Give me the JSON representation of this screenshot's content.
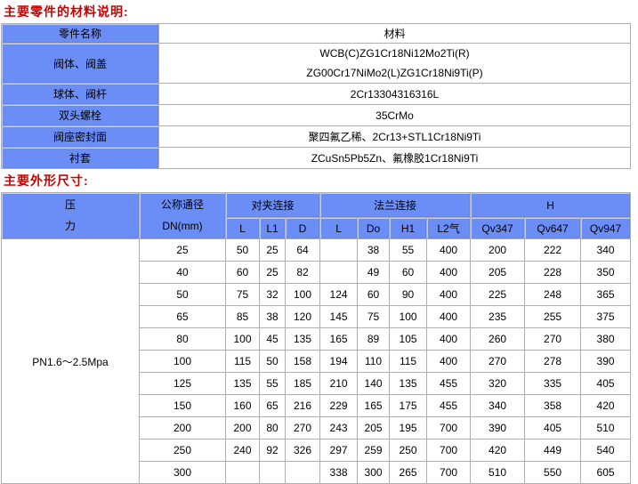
{
  "colors": {
    "header_blue": "#6b8df6",
    "title_red": "#cc0000",
    "border_gray": "#aeaeae"
  },
  "sections": {
    "materials_title": "主要零件的材料说明:",
    "dimensions_title": "主要外形尺寸:"
  },
  "materials_table": {
    "headers": {
      "part": "零件名称",
      "material": "材料"
    },
    "rows": [
      {
        "part": "阀体、阀盖",
        "material_lines": [
          "WCB(C)ZG1Cr18Ni12Mo2Ti(R)",
          "ZG00Cr17NiMo2(L)ZG1Cr18Ni9Ti(P)"
        ]
      },
      {
        "part": "球体、阀杆",
        "material_lines": [
          "2Cr13304316316L"
        ]
      },
      {
        "part": "双头螺栓",
        "material_lines": [
          "35CrMo"
        ]
      },
      {
        "part": "阀座密封面",
        "material_lines": [
          "聚四氟乙稀、2Cr13+STL1Cr18Ni9Ti"
        ]
      },
      {
        "part": "衬套",
        "material_lines": [
          "ZCuSn5Pb5Zn、氟橡胶1Cr18Ni9Ti"
        ]
      }
    ]
  },
  "dimensions_table": {
    "pressure_header": [
      "压",
      "力"
    ],
    "dn_header": [
      "公称通径",
      "DN(mm)"
    ],
    "groups": [
      "对夹连接",
      "法兰连接",
      "H"
    ],
    "sub_headers": [
      "L",
      "L1",
      "D",
      "L",
      "Do",
      "H1",
      "L2气",
      "Qv347",
      "Qv647",
      "Qv947"
    ],
    "pressure_value": "PN1.6～2.5Mpa",
    "rows": [
      {
        "dn": "25",
        "cells": [
          "50",
          "25",
          "64",
          "",
          "38",
          "55",
          "400",
          "200",
          "222",
          "340"
        ]
      },
      {
        "dn": "40",
        "cells": [
          "60",
          "25",
          "82",
          "",
          "49",
          "60",
          "400",
          "205",
          "228",
          "350"
        ]
      },
      {
        "dn": "50",
        "cells": [
          "75",
          "32",
          "100",
          "124",
          "60",
          "90",
          "400",
          "225",
          "248",
          "365"
        ]
      },
      {
        "dn": "65",
        "cells": [
          "85",
          "38",
          "120",
          "145",
          "75",
          "100",
          "400",
          "235",
          "255",
          "375"
        ]
      },
      {
        "dn": "80",
        "cells": [
          "100",
          "45",
          "135",
          "165",
          "89",
          "105",
          "400",
          "260",
          "270",
          "380"
        ]
      },
      {
        "dn": "100",
        "cells": [
          "115",
          "50",
          "158",
          "194",
          "110",
          "115",
          "400",
          "270",
          "278",
          "390"
        ]
      },
      {
        "dn": "125",
        "cells": [
          "135",
          "55",
          "185",
          "210",
          "140",
          "135",
          "455",
          "320",
          "335",
          "405"
        ]
      },
      {
        "dn": "150",
        "cells": [
          "160",
          "65",
          "216",
          "229",
          "165",
          "175",
          "455",
          "340",
          "358",
          "420"
        ]
      },
      {
        "dn": "200",
        "cells": [
          "200",
          "80",
          "270",
          "243",
          "205",
          "195",
          "700",
          "390",
          "405",
          "510"
        ]
      },
      {
        "dn": "250",
        "cells": [
          "240",
          "92",
          "326",
          "297",
          "259",
          "250",
          "700",
          "420",
          "449",
          "540"
        ]
      },
      {
        "dn": "300",
        "cells": [
          "",
          "",
          "",
          "338",
          "300",
          "265",
          "700",
          "510",
          "550",
          "605"
        ]
      }
    ]
  }
}
